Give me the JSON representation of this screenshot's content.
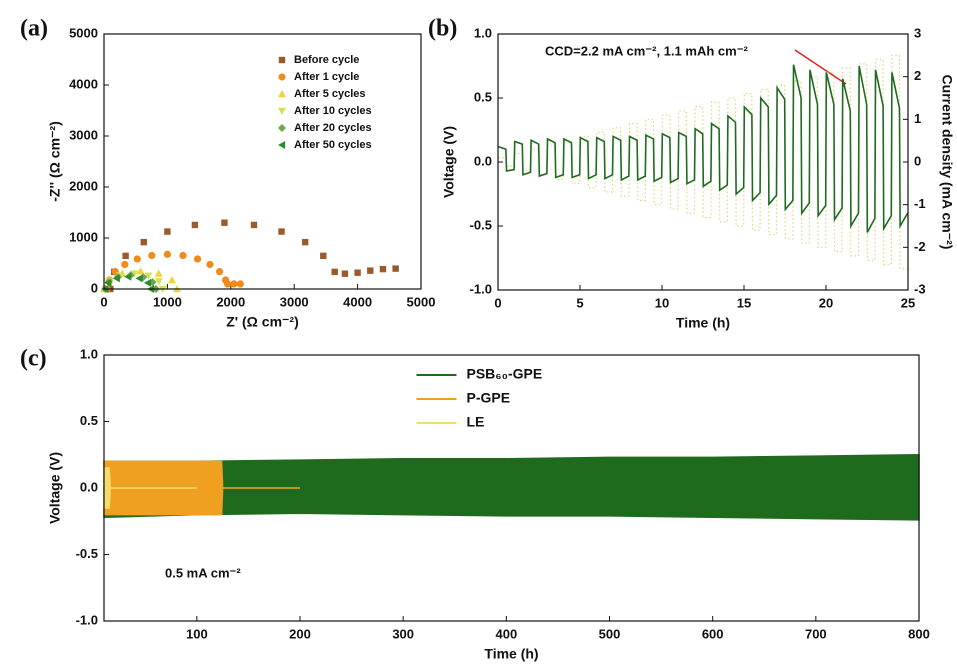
{
  "chart_data": [
    {
      "type": "scatter",
      "panel_label": "(a)",
      "xlabel": "Z' (Ω cm⁻²)",
      "ylabel": "-Z'' (Ω cm⁻²)",
      "xlim": [
        0,
        5000
      ],
      "xticks": [
        0,
        1000,
        2000,
        3000,
        4000,
        5000
      ],
      "ylim": [
        0,
        5000
      ],
      "yticks": [
        0,
        1000,
        2000,
        3000,
        4000,
        5000
      ],
      "legend": "upper right",
      "series": [
        {
          "name": "Before cycle",
          "color": "#9b5a2a",
          "marker": "square",
          "x": [
            100,
            161,
            341,
            627,
            1000,
            1434,
            1900,
            2366,
            2800,
            3173,
            3459,
            3639,
            3800,
            4000,
            4200,
            4400,
            4600
          ],
          "y": [
            0,
            336,
            650,
            919,
            1126,
            1256,
            1300,
            1256,
            1126,
            919,
            650,
            336,
            300,
            320,
            360,
            390,
            400
          ]
        },
        {
          "name": "After 1 cycle",
          "color": "#f08a1c",
          "marker": "circle",
          "x": [
            50,
            82,
            177,
            328,
            525,
            754,
            1000,
            1246,
            1475,
            1672,
            1823,
            1918,
            1950,
            2050,
            2150
          ],
          "y": [
            0,
            176,
            340,
            481,
            589,
            657,
            680,
            657,
            589,
            481,
            340,
            176,
            100,
            100,
            100
          ]
        },
        {
          "name": "After 5 cycles",
          "color": "#f5d23c",
          "marker": "triangle-up",
          "x": [
            0,
            77,
            288,
            575,
            863,
            1073,
            1150
          ],
          "y": [
            0,
            175,
            303,
            350,
            303,
            175,
            0
          ]
        },
        {
          "name": "After 10 cycles",
          "color": "#d4e157",
          "marker": "triangle-down",
          "x": [
            25,
            85,
            250,
            475,
            700,
            865,
            925
          ],
          "y": [
            0,
            150,
            260,
            300,
            260,
            150,
            0
          ]
        },
        {
          "name": "After 20 cycles",
          "color": "#6aa84f",
          "marker": "diamond",
          "x": [
            20,
            74,
            220,
            420,
            620,
            766,
            820
          ],
          "y": [
            0,
            135,
            234,
            270,
            234,
            135,
            0
          ]
        },
        {
          "name": "After 50 cycles",
          "color": "#2e8b2e",
          "marker": "triangle-left",
          "x": [
            20,
            68,
            200,
            380,
            560,
            692,
            740
          ],
          "y": [
            0,
            120,
            208,
            240,
            208,
            120,
            0
          ]
        }
      ]
    },
    {
      "type": "line",
      "panel_label": "(b)",
      "xlabel": "Time (h)",
      "ylabel": "Voltage (V)",
      "y2label": "Current density (mA cm⁻²)",
      "annotation": "CCD=2.2 mA cm⁻², 1.1 mAh cm⁻²",
      "xlim": [
        0,
        25
      ],
      "xticks": [
        0,
        5,
        10,
        15,
        20,
        25
      ],
      "ylim": [
        -1,
        1
      ],
      "yticks": [
        {
          "value": -1,
          "label": "-1.0"
        },
        -0.5,
        {
          "value": 0,
          "label": "0.0"
        },
        0.5,
        {
          "value": 1,
          "label": "1.0"
        }
      ],
      "y2lim": [
        -3,
        3
      ],
      "y2ticks": [
        -3,
        -2,
        -1,
        0,
        1,
        2,
        3
      ],
      "x": [
        0.02,
        0.48,
        0.52,
        0.98,
        1.02,
        1.48,
        1.52,
        1.98,
        2.02,
        2.48,
        2.52,
        2.98,
        3.02,
        3.48,
        3.52,
        3.98,
        4.02,
        4.48,
        4.52,
        4.98,
        5.02,
        5.48,
        5.52,
        5.98,
        6.02,
        6.48,
        6.52,
        6.98,
        7.02,
        7.48,
        7.52,
        7.98,
        8.02,
        8.48,
        8.52,
        8.98,
        9.02,
        9.48,
        9.52,
        9.98,
        10.02,
        10.48,
        10.52,
        10.98,
        11.02,
        11.48,
        11.52,
        11.98,
        12.02,
        12.48,
        12.52,
        12.98,
        13.02,
        13.48,
        13.52,
        13.98,
        14.02,
        14.48,
        14.52,
        14.98,
        15.02,
        15.48,
        15.52,
        15.98,
        16.02,
        16.48,
        16.52,
        16.98,
        17.02,
        17.48,
        17.52,
        17.98,
        18.02,
        18.48,
        18.52,
        18.98,
        19.02,
        19.48,
        19.52,
        19.98,
        20.02,
        20.48,
        20.52,
        20.98,
        21.02,
        21.48,
        21.52,
        21.98,
        22.02,
        22.48,
        22.52,
        22.98,
        23.02,
        23.48,
        23.52,
        23.98,
        24.02,
        24.48,
        24.52,
        24.98
      ],
      "series": [
        {
          "name": "Voltage",
          "color": "#1e6b1e",
          "linestyle": "solid",
          "values": [
            0.12,
            0.1,
            -0.07,
            -0.06,
            0.16,
            0.14,
            -0.1,
            -0.08,
            0.17,
            0.14,
            -0.11,
            -0.09,
            0.18,
            0.15,
            -0.12,
            -0.1,
            0.18,
            0.15,
            -0.12,
            -0.1,
            0.19,
            0.16,
            -0.13,
            -0.1,
            0.19,
            0.16,
            -0.13,
            -0.1,
            0.2,
            0.17,
            -0.14,
            -0.11,
            0.2,
            0.17,
            -0.14,
            -0.11,
            0.21,
            0.18,
            -0.15,
            -0.12,
            0.22,
            0.19,
            -0.16,
            -0.13,
            0.23,
            0.2,
            -0.17,
            -0.14,
            0.26,
            0.22,
            -0.19,
            -0.15,
            0.3,
            0.26,
            -0.22,
            -0.18,
            0.36,
            0.31,
            -0.25,
            -0.2,
            0.43,
            0.37,
            -0.3,
            -0.24,
            0.5,
            0.43,
            -0.33,
            -0.26,
            0.58,
            0.49,
            -0.37,
            -0.3,
            0.76,
            0.5,
            -0.4,
            -0.32,
            0.72,
            0.45,
            -0.42,
            -0.34,
            0.7,
            0.45,
            -0.45,
            -0.36,
            0.65,
            0.4,
            -0.5,
            -0.4,
            0.75,
            0.45,
            -0.55,
            -0.44,
            0.72,
            0.44,
            -0.52,
            -0.42,
            0.7,
            0.42,
            -0.5,
            -0.4
          ]
        },
        {
          "name": "Current density",
          "color": "#e6d27a",
          "linestyle": "dotted",
          "axis": "y2",
          "values": [
            0.1,
            0.1,
            -0.1,
            -0.1,
            0.2,
            0.2,
            -0.2,
            -0.2,
            0.3,
            0.3,
            -0.3,
            -0.3,
            0.4,
            0.4,
            -0.4,
            -0.4,
            0.5,
            0.5,
            -0.5,
            -0.5,
            0.6,
            0.6,
            -0.6,
            -0.6,
            0.7,
            0.7,
            -0.7,
            -0.7,
            0.8,
            0.8,
            -0.8,
            -0.8,
            0.9,
            0.9,
            -0.9,
            -0.9,
            1.0,
            1.0,
            -1.0,
            -1.0,
            1.1,
            1.1,
            -1.1,
            -1.1,
            1.2,
            1.2,
            -1.2,
            -1.2,
            1.3,
            1.3,
            -1.3,
            -1.3,
            1.4,
            1.4,
            -1.4,
            -1.4,
            1.5,
            1.5,
            -1.5,
            -1.5,
            1.6,
            1.6,
            -1.6,
            -1.6,
            1.7,
            1.7,
            -1.7,
            -1.7,
            1.8,
            1.8,
            -1.8,
            -1.8,
            1.9,
            1.9,
            -1.9,
            -1.9,
            2.0,
            2.0,
            -2.0,
            -2.0,
            2.1,
            2.1,
            -2.1,
            -2.1,
            2.2,
            2.2,
            -2.2,
            -2.2,
            2.3,
            2.3,
            -2.3,
            -2.3,
            2.4,
            2.4,
            -2.4,
            -2.4,
            2.5,
            2.5,
            -2.5,
            -2.5
          ]
        }
      ]
    },
    {
      "type": "band",
      "panel_label": "(c)",
      "xlabel": "Time (h)",
      "ylabel": "Voltage (V)",
      "annotation": "0.5 mA cm⁻²",
      "xlim": [
        10,
        800
      ],
      "xticks": [
        100,
        200,
        300,
        400,
        500,
        600,
        700,
        800
      ],
      "ylim": [
        -1,
        1
      ],
      "yticks": [
        {
          "value": -1,
          "label": "-1.0"
        },
        -0.5,
        {
          "value": 0,
          "label": "0.0"
        },
        0.5,
        {
          "value": 1,
          "label": "1.0"
        }
      ],
      "legend": "upper center",
      "series": [
        {
          "name": "PSB₆₀-GPE",
          "color": "#1e6b1e",
          "x": [
            10,
            100,
            200,
            300,
            400,
            500,
            600,
            700,
            800
          ],
          "upper": [
            0.2,
            0.2,
            0.21,
            0.22,
            0.22,
            0.23,
            0.23,
            0.24,
            0.25
          ],
          "lower": [
            -0.22,
            -0.2,
            -0.19,
            -0.2,
            -0.21,
            -0.21,
            -0.22,
            -0.23,
            -0.24
          ]
        },
        {
          "name": "P-GPE",
          "color": "#f0a020",
          "x": [
            10,
            124,
            125,
            200
          ],
          "upper": [
            0.2,
            0.2,
            0,
            0
          ],
          "lower": [
            -0.2,
            -0.2,
            0,
            0
          ]
        },
        {
          "name": "LE",
          "color": "#f5dc6a",
          "x": [
            10,
            15,
            16,
            100
          ],
          "upper": [
            0.15,
            0.15,
            0,
            0
          ],
          "lower": [
            -0.15,
            -0.15,
            0,
            0
          ]
        }
      ]
    }
  ]
}
